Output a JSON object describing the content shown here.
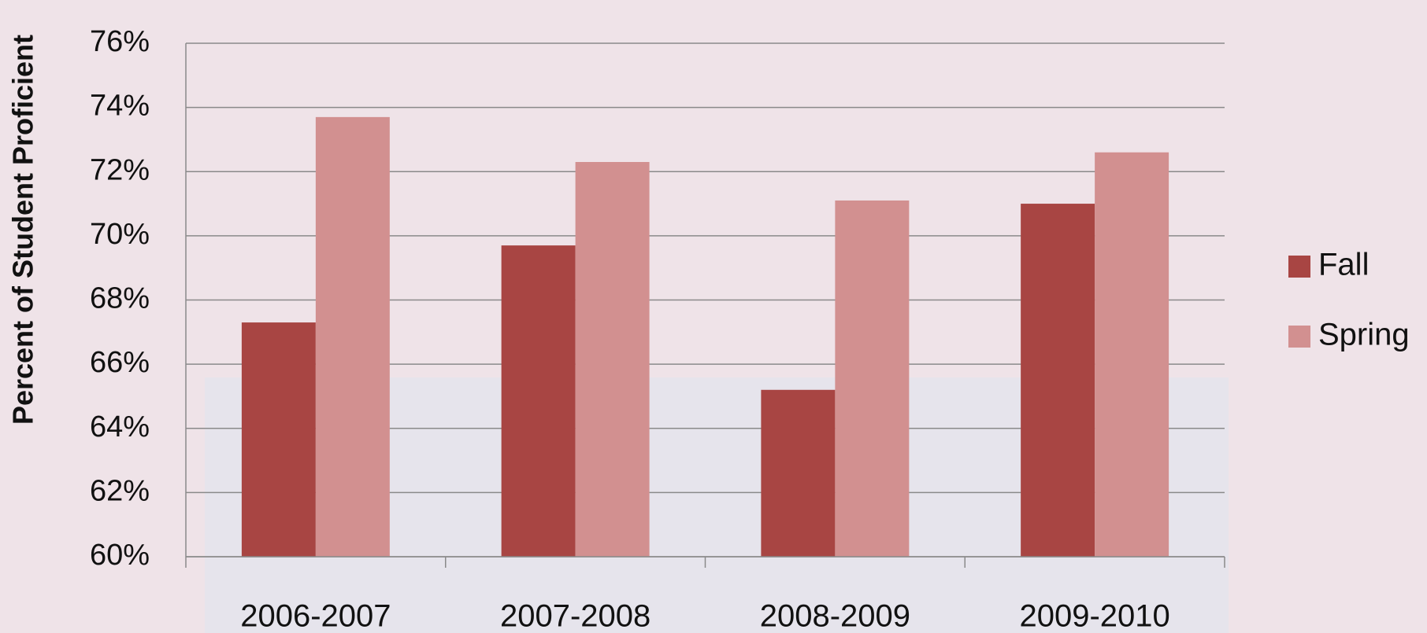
{
  "chart_data": {
    "type": "bar",
    "y_label": "Percent of Student Proficient",
    "categories": [
      "2006-2007",
      "2007-2008",
      "2008-2009",
      "2009-2010"
    ],
    "series": [
      {
        "name": "Fall",
        "color": "#a84543",
        "values": [
          67.3,
          69.7,
          65.2,
          71.0
        ]
      },
      {
        "name": "Spring",
        "color": "#d29090",
        "values": [
          73.7,
          72.3,
          71.1,
          72.6
        ]
      }
    ],
    "ylim": [
      60,
      76
    ],
    "yticks": [
      {
        "value": 60,
        "label": "60%"
      },
      {
        "value": 62,
        "label": "62%"
      },
      {
        "value": 64,
        "label": "64%"
      },
      {
        "value": 66,
        "label": "66%"
      },
      {
        "value": 68,
        "label": "68%"
      },
      {
        "value": 70,
        "label": "70%"
      },
      {
        "value": 72,
        "label": "72%"
      },
      {
        "value": 74,
        "label": "74%"
      },
      {
        "value": 76,
        "label": "76%"
      }
    ],
    "grid": true,
    "legend": "right"
  }
}
